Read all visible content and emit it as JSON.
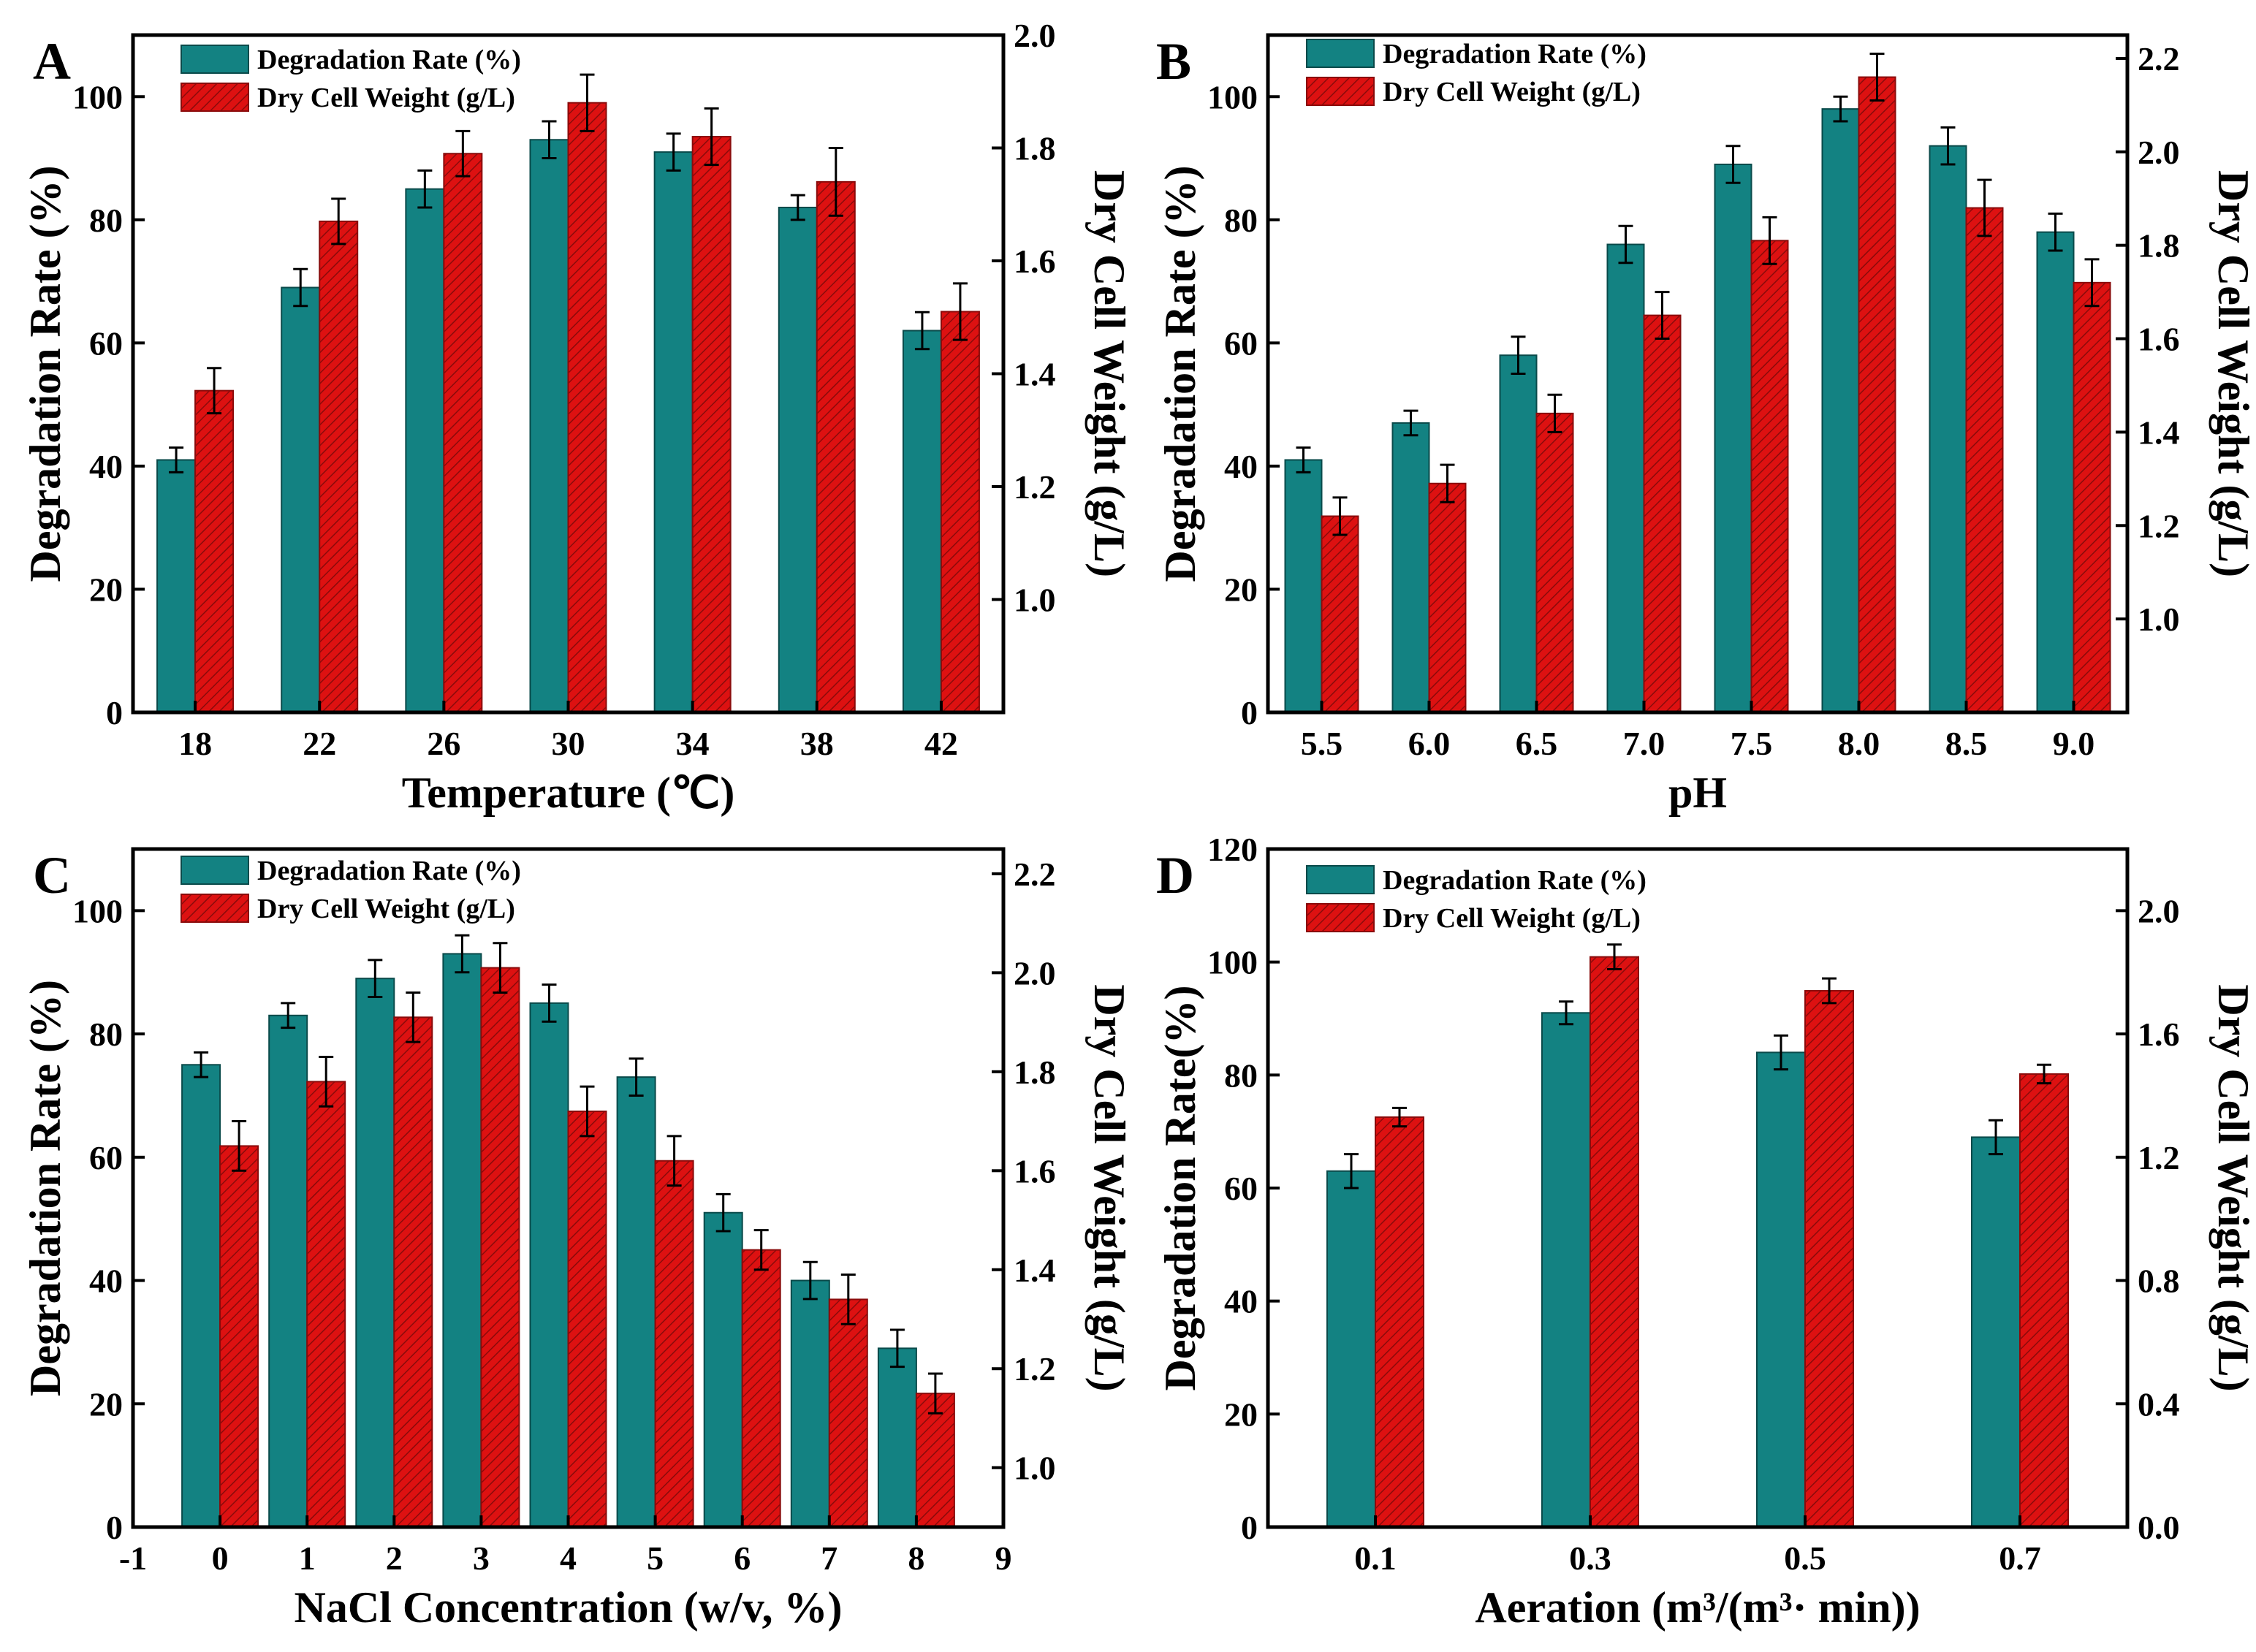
{
  "colors": {
    "series1": "#138282",
    "series2": "#dd1111",
    "hatch": "#8a0b0b"
  },
  "chart_data": [
    {
      "type": "bar",
      "panel": "A",
      "categories": [
        "18",
        "22",
        "26",
        "30",
        "34",
        "38",
        "42"
      ],
      "xlabel": "Temperature (℃)",
      "ylabel": "Degradation Rate (%)",
      "ylabel_right": "Dry Cell Weight (g/L)",
      "ylim": [
        0,
        110
      ],
      "yticks": [
        "0",
        "20",
        "40",
        "60",
        "80",
        "100"
      ],
      "ylim_right": [
        0.8,
        2.0
      ],
      "yticks_right": [
        "1.0",
        "1.2",
        "1.4",
        "1.6",
        "1.8",
        "2.0"
      ],
      "legend": [
        "Degradation Rate (%)",
        "Dry Cell Weight (g/L)"
      ],
      "series": [
        {
          "name": "Degradation Rate (%)",
          "axis": "left",
          "values": [
            41,
            69,
            85,
            93,
            91,
            82,
            62
          ],
          "errors": [
            2,
            3,
            3,
            3,
            3,
            2,
            3
          ]
        },
        {
          "name": "Dry Cell Weight (g/L)",
          "axis": "right",
          "values": [
            1.37,
            1.67,
            1.79,
            1.88,
            1.82,
            1.74,
            1.51
          ],
          "errors": [
            0.04,
            0.04,
            0.04,
            0.05,
            0.05,
            0.06,
            0.05
          ]
        }
      ]
    },
    {
      "type": "bar",
      "panel": "B",
      "categories": [
        "5.5",
        "6.0",
        "6.5",
        "7.0",
        "7.5",
        "8.0",
        "8.5",
        "9.0"
      ],
      "xlabel": "pH",
      "ylabel": "Degradation Rate (%)",
      "ylabel_right": "Dry Cell Weight (g/L)",
      "ylim": [
        0,
        110
      ],
      "yticks": [
        "0",
        "20",
        "40",
        "60",
        "80",
        "100"
      ],
      "ylim_right": [
        0.8,
        2.25
      ],
      "yticks_right": [
        "1.0",
        "1.2",
        "1.4",
        "1.6",
        "1.8",
        "2.0",
        "2.2"
      ],
      "legend": [
        "Degradation Rate (%)",
        "Dry Cell Weight (g/L)"
      ],
      "series": [
        {
          "name": "Degradation Rate (%)",
          "axis": "left",
          "values": [
            41,
            47,
            58,
            76,
            89,
            98,
            92,
            78
          ],
          "errors": [
            2,
            2,
            3,
            3,
            3,
            2,
            3,
            3
          ]
        },
        {
          "name": "Dry Cell Weight (g/L)",
          "axis": "right",
          "values": [
            1.22,
            1.29,
            1.44,
            1.65,
            1.81,
            2.16,
            1.88,
            1.72
          ],
          "errors": [
            0.04,
            0.04,
            0.04,
            0.05,
            0.05,
            0.05,
            0.06,
            0.05
          ]
        }
      ]
    },
    {
      "type": "bar",
      "panel": "C",
      "categories": [
        "0",
        "1",
        "2",
        "3",
        "4",
        "5",
        "6",
        "7",
        "8"
      ],
      "xticks": [
        "-1",
        "0",
        "1",
        "2",
        "3",
        "4",
        "5",
        "6",
        "7",
        "8",
        "9"
      ],
      "xlabel": "NaCl Concentration (w/v, %)",
      "ylabel": "Degradation Rate (%)",
      "ylabel_right": "Dry Cell Weight (g/L)",
      "ylim": [
        0,
        110
      ],
      "yticks": [
        "0",
        "20",
        "40",
        "60",
        "80",
        "100"
      ],
      "ylim_right": [
        0.88,
        2.25
      ],
      "yticks_right": [
        "1.0",
        "1.2",
        "1.4",
        "1.6",
        "1.8",
        "2.0",
        "2.2"
      ],
      "legend": [
        "Degradation Rate (%)",
        "Dry Cell Weight (g/L)"
      ],
      "series": [
        {
          "name": "Degradation Rate (%)",
          "axis": "left",
          "values": [
            75,
            83,
            89,
            93,
            85,
            73,
            51,
            40,
            29
          ],
          "errors": [
            2,
            2,
            3,
            3,
            3,
            3,
            3,
            3,
            3
          ]
        },
        {
          "name": "Dry Cell Weight (g/L)",
          "axis": "right",
          "values": [
            1.65,
            1.78,
            1.91,
            2.01,
            1.72,
            1.62,
            1.44,
            1.34,
            1.15
          ],
          "errors": [
            0.05,
            0.05,
            0.05,
            0.05,
            0.05,
            0.05,
            0.04,
            0.05,
            0.04
          ]
        }
      ]
    },
    {
      "type": "bar",
      "panel": "D",
      "categories": [
        "0.1",
        "0.3",
        "0.5",
        "0.7"
      ],
      "xlabel": "Aeration (m³/(m³· min))",
      "ylabel": "Degradation Rate(%)",
      "ylabel_right": "Dry Cell Weight (g/L)",
      "ylim": [
        0,
        120
      ],
      "yticks": [
        "0",
        "20",
        "40",
        "60",
        "80",
        "100",
        "120"
      ],
      "ylim_right": [
        0.0,
        2.2
      ],
      "yticks_right": [
        "0.0",
        "0.4",
        "0.8",
        "1.2",
        "1.6",
        "2.0"
      ],
      "legend": [
        "Degradation Rate (%)",
        "Dry Cell Weight (g/L)"
      ],
      "series": [
        {
          "name": "Degradation Rate (%)",
          "axis": "left",
          "values": [
            63,
            91,
            84,
            69
          ],
          "errors": [
            3,
            2,
            3,
            3
          ]
        },
        {
          "name": "Dry Cell Weight (g/L)",
          "axis": "right",
          "values": [
            1.33,
            1.85,
            1.74,
            1.47
          ],
          "errors": [
            0.03,
            0.04,
            0.04,
            0.03
          ]
        }
      ]
    }
  ]
}
